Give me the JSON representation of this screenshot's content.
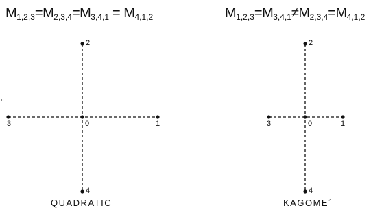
{
  "left_panel": {
    "equation": {
      "t1": "M",
      "s1": "1,2,3",
      "op1": "=",
      "t2": "M",
      "s2": "2,3,4",
      "op2": "=",
      "t3": "M",
      "s3": "3,4,1",
      "op3": " = ",
      "t4": "M",
      "s4": "4,1,2"
    },
    "caption": "QUADRATIC",
    "labels": {
      "center": "0",
      "right": "1",
      "top": "2",
      "left": "3",
      "bottom": "4"
    }
  },
  "right_panel": {
    "equation": {
      "t1": "M",
      "s1": "1,2,3",
      "op1": "=",
      "t2": "M",
      "s2": "3,4,1",
      "op2": "≠",
      "t3": "M",
      "s3": "2,3,4",
      "op3": "=",
      "t4": "M",
      "s4": "4,1,2"
    },
    "caption": "KAGOME´",
    "labels": {
      "center": "0",
      "right": "1",
      "top": "2",
      "left": "3",
      "bottom": "4"
    }
  },
  "stray_mark": "ㅂ"
}
